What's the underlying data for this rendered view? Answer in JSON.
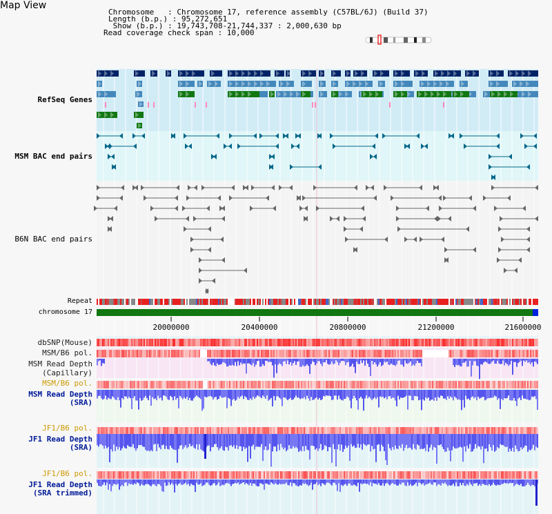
{
  "page": {
    "title": "Map View"
  },
  "info": {
    "rows": [
      "Chromosome   : Chromosome 17, reference assembly (C57BL/6J) (Build 37)",
      "Length (b.p.) : 95,272,651",
      " Show (b.p.) : 19,743,708-21,744,337 : 2,000,630 bp",
      "Read coverage check span : 10,000"
    ]
  },
  "tracks": {
    "refseq": {
      "label": "RefSeq Genes",
      "color": "#001a88"
    },
    "msm_bac": {
      "label": "MSM BAC end pairs",
      "color": "#006688"
    },
    "b6n_bac": {
      "label": "B6N BAC end pairs",
      "color": "#666666"
    },
    "repeat": {
      "label": "Repeat"
    },
    "chromosome": {
      "label": "chromosome 17"
    },
    "dbsnp": {
      "label": "dbSNP(Mouse)"
    },
    "msm_b6_pol_1": {
      "label": "MSM/B6 pol."
    },
    "msm_depth_cap": {
      "label1": "MSM Read Depth",
      "label2": "(Capillary)"
    },
    "msm_b6_pol_2": {
      "label": "MSM/B6 pol.",
      "color": "#cc9900"
    },
    "msm_depth_sra": {
      "label1": "MSM Read Depth",
      "label2": "(SRA)",
      "color": "#001a99"
    },
    "jf1_b6_pol_1": {
      "label": "JF1/B6 pol.",
      "color": "#cc9900"
    },
    "jf1_depth_sra": {
      "label1": "JF1 Read Depth",
      "label2": "(SRA)",
      "color": "#001a99"
    },
    "jf1_b6_pol_2": {
      "label": "JF1/B6 pol.",
      "color": "#cc9900"
    },
    "jf1_depth_trim": {
      "label1": "JF1 Read Depth",
      "label2": "(SRA trimmed)",
      "color": "#001a99"
    }
  },
  "axis": {
    "ticks": [
      "20000000",
      "20400000",
      "20800000",
      "21200000",
      "21600000"
    ]
  },
  "colors": {
    "gene_dark": "#002266",
    "gene_mid": "#4488bb",
    "gene_green": "#117711",
    "chrom_green": "#117711",
    "chrom_end": "#0022dd",
    "snp_red": "#ee2222",
    "depth_blue": "#3333ee"
  }
}
